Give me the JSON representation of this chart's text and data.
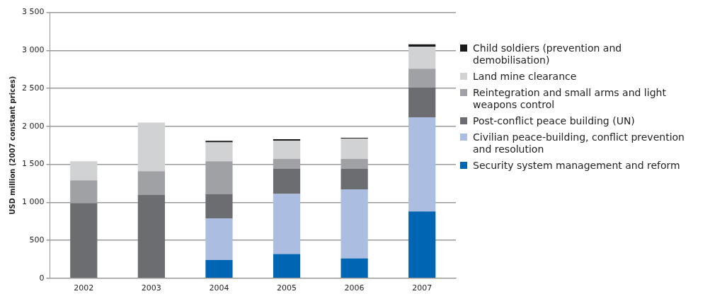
{
  "chart_data": {
    "type": "bar",
    "stacked": true,
    "ylabel": "USD million (2007 constant prices)",
    "categories": [
      "2002",
      "2003",
      "2004",
      "2005",
      "2006",
      "2007"
    ],
    "series": [
      {
        "name": "Security system management and reform",
        "color": "#0066b3",
        "values": [
          0,
          0,
          240,
          320,
          260,
          880
        ]
      },
      {
        "name": "Civilian peace-building, conflict prevention and resolution",
        "color": "#abbde0",
        "values": [
          0,
          0,
          550,
          790,
          910,
          1240
        ]
      },
      {
        "name": "Post-conflict peace building (UN)",
        "color": "#6c6d71",
        "values": [
          990,
          1100,
          320,
          330,
          270,
          390
        ]
      },
      {
        "name": "Reintegration and small arms and light weapons control",
        "color": "#a0a1a5",
        "values": [
          300,
          310,
          430,
          130,
          130,
          250
        ]
      },
      {
        "name": "Land mine clearance",
        "color": "#d1d2d4",
        "values": [
          250,
          640,
          250,
          240,
          270,
          290
        ]
      },
      {
        "name": "Child soldiers (prevention and demobilisation)",
        "color": "#1a1a1a",
        "values": [
          0,
          0,
          20,
          20,
          10,
          30
        ]
      }
    ],
    "ylim": [
      0,
      3500
    ],
    "yticks": [
      0,
      500,
      {
        "value": 1000,
        "label": "1 000"
      },
      {
        "value": 1500,
        "label": "1 500"
      },
      {
        "value": 2000,
        "label": "2 000"
      },
      {
        "value": 2500,
        "label": "2 500"
      },
      {
        "value": 3000,
        "label": "3 000"
      },
      {
        "value": 3500,
        "label": "3 500"
      }
    ],
    "grid": "y",
    "legend": "right"
  }
}
